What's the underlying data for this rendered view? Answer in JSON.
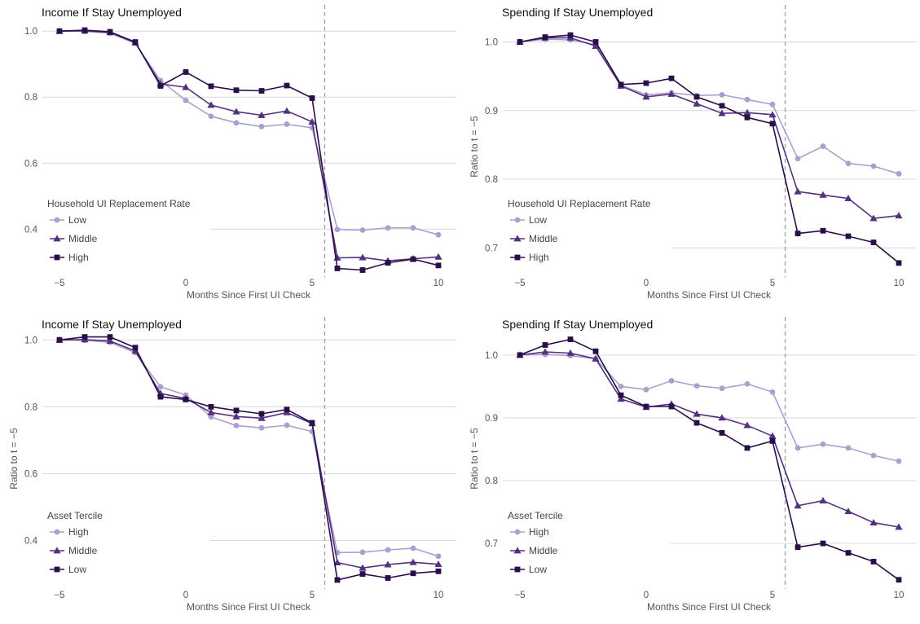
{
  "colors": {
    "light": "#a9a0cf",
    "mid": "#54307f",
    "dark": "#2a0e48"
  },
  "chart_data": [
    {
      "type": "line",
      "title": "Income If Stay Unemployed",
      "xlabel": "Months Since First UI Check",
      "ylabel": "",
      "xlim": [
        -5.7,
        10.5
      ],
      "ylim": [
        0.26,
        1.04
      ],
      "xticks": [
        -5,
        0,
        5,
        10
      ],
      "yticks": [
        0.4,
        0.6,
        0.8,
        1.0
      ],
      "ytick_labels": [
        "0.4",
        "0.6",
        "0.8",
        "1.0"
      ],
      "vline": 5.5,
      "legend_title": "Household UI Replacement Rate",
      "legend_position": "bottom-left",
      "x": [
        -5,
        -4,
        -3,
        -2,
        -1,
        0,
        1,
        2,
        3,
        4,
        5,
        6,
        7,
        8,
        9,
        10
      ],
      "series": [
        {
          "name": "Low",
          "marker": "circle",
          "color": "light",
          "values": [
            1.0,
            0.999,
            0.994,
            0.963,
            0.85,
            0.79,
            0.742,
            0.722,
            0.711,
            0.718,
            0.707,
            0.399,
            0.397,
            0.404,
            0.404,
            0.383
          ]
        },
        {
          "name": "Middle",
          "marker": "triangle",
          "color": "mid",
          "values": [
            1.0,
            1.001,
            0.996,
            0.965,
            0.84,
            0.83,
            0.776,
            0.756,
            0.745,
            0.758,
            0.725,
            0.313,
            0.314,
            0.304,
            0.31,
            0.316
          ]
        },
        {
          "name": "High",
          "marker": "square",
          "color": "dark",
          "values": [
            1.0,
            1.003,
            0.998,
            0.967,
            0.834,
            0.876,
            0.833,
            0.821,
            0.819,
            0.835,
            0.797,
            0.281,
            0.276,
            0.298,
            0.309,
            0.29
          ]
        }
      ]
    },
    {
      "type": "line",
      "title": "Spending If Stay Unemployed",
      "xlabel": "Months Since First UI Check",
      "ylabel": "Ratio to t = −5",
      "xlim": [
        -5.7,
        10.5
      ],
      "ylim": [
        0.66,
        1.035
      ],
      "xticks": [
        -5,
        0,
        5,
        10
      ],
      "yticks": [
        0.7,
        0.8,
        0.9,
        1.0
      ],
      "ytick_labels": [
        "0.7",
        "0.8",
        "0.9",
        "1.0"
      ],
      "vline": 5.5,
      "legend_title": "Household UI Replacement Rate",
      "legend_position": "bottom-left",
      "x": [
        -5,
        -4,
        -3,
        -2,
        -1,
        0,
        1,
        2,
        3,
        4,
        5,
        6,
        7,
        8,
        9,
        10
      ],
      "series": [
        {
          "name": "Low",
          "marker": "circle",
          "color": "light",
          "values": [
            1.0,
            1.004,
            1.003,
            0.996,
            0.937,
            0.923,
            0.926,
            0.922,
            0.923,
            0.916,
            0.909,
            0.83,
            0.848,
            0.823,
            0.819,
            0.808
          ]
        },
        {
          "name": "Middle",
          "marker": "triangle",
          "color": "mid",
          "values": [
            1.0,
            1.006,
            1.006,
            0.994,
            0.936,
            0.92,
            0.924,
            0.91,
            0.896,
            0.897,
            0.894,
            0.782,
            0.777,
            0.772,
            0.743,
            0.747
          ]
        },
        {
          "name": "High",
          "marker": "square",
          "color": "dark",
          "values": [
            1.0,
            1.007,
            1.01,
            1.0,
            0.938,
            0.94,
            0.947,
            0.92,
            0.907,
            0.89,
            0.881,
            0.721,
            0.725,
            0.717,
            0.708,
            0.678
          ]
        }
      ]
    },
    {
      "type": "line",
      "title": "Income If Stay Unemployed",
      "xlabel": "Months Since First UI Check",
      "ylabel": "Ratio to t = −5",
      "xlim": [
        -5.7,
        10.5
      ],
      "ylim": [
        0.26,
        1.03
      ],
      "xticks": [
        -5,
        0,
        5,
        10
      ],
      "yticks": [
        0.4,
        0.6,
        0.8,
        1.0
      ],
      "ytick_labels": [
        "0.4",
        "0.6",
        "0.8",
        "1.0"
      ],
      "vline": 5.5,
      "legend_title": "Asset Tercile",
      "legend_position": "bottom-left",
      "x": [
        -5,
        -4,
        -3,
        -2,
        -1,
        0,
        1,
        2,
        3,
        4,
        5,
        6,
        7,
        8,
        9,
        10
      ],
      "series": [
        {
          "name": "High",
          "marker": "circle",
          "color": "light",
          "values": [
            1.0,
            0.999,
            0.993,
            0.962,
            0.86,
            0.835,
            0.77,
            0.744,
            0.737,
            0.745,
            0.726,
            0.364,
            0.365,
            0.372,
            0.377,
            0.353
          ]
        },
        {
          "name": "Middle",
          "marker": "triangle",
          "color": "mid",
          "values": [
            1.0,
            1.001,
            0.997,
            0.967,
            0.84,
            0.825,
            0.783,
            0.771,
            0.766,
            0.783,
            0.75,
            0.334,
            0.318,
            0.328,
            0.335,
            0.329
          ]
        },
        {
          "name": "Low",
          "marker": "square",
          "color": "dark",
          "values": [
            1.0,
            1.009,
            1.009,
            0.977,
            0.83,
            0.822,
            0.8,
            0.789,
            0.779,
            0.792,
            0.752,
            0.282,
            0.3,
            0.288,
            0.302,
            0.308
          ]
        }
      ]
    },
    {
      "type": "line",
      "title": "Spending If Stay Unemployed",
      "xlabel": "Months Since First UI Check",
      "ylabel": "Ratio to t = −5",
      "xlim": [
        -5.7,
        10.5
      ],
      "ylim": [
        0.63,
        1.04
      ],
      "xticks": [
        -5,
        0,
        5,
        10
      ],
      "yticks": [
        0.7,
        0.8,
        0.9,
        1.0
      ],
      "ytick_labels": [
        "0.7",
        "0.8",
        "0.9",
        "1.0"
      ],
      "vline": 5.5,
      "legend_title": "Asset Tercile",
      "legend_position": "bottom-left",
      "x": [
        -5,
        -4,
        -3,
        -2,
        -1,
        0,
        1,
        2,
        3,
        4,
        5,
        6,
        7,
        8,
        9,
        10
      ],
      "series": [
        {
          "name": "High",
          "marker": "circle",
          "color": "light",
          "values": [
            1.0,
            1.001,
            0.999,
            0.994,
            0.95,
            0.945,
            0.959,
            0.951,
            0.947,
            0.954,
            0.941,
            0.852,
            0.858,
            0.852,
            0.84,
            0.831
          ]
        },
        {
          "name": "Middle",
          "marker": "triangle",
          "color": "mid",
          "values": [
            1.0,
            1.005,
            1.003,
            0.994,
            0.93,
            0.917,
            0.922,
            0.906,
            0.9,
            0.888,
            0.871,
            0.76,
            0.768,
            0.751,
            0.733,
            0.726
          ]
        },
        {
          "name": "Low",
          "marker": "square",
          "color": "dark",
          "values": [
            1.0,
            1.016,
            1.025,
            1.006,
            0.936,
            0.918,
            0.918,
            0.892,
            0.876,
            0.852,
            0.863,
            0.694,
            0.7,
            0.685,
            0.671,
            0.642
          ]
        }
      ]
    }
  ]
}
